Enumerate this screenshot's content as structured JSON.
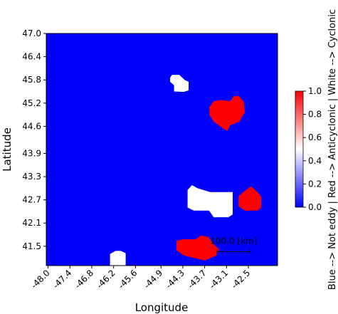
{
  "chart_data": {
    "type": "heatmap",
    "title": "",
    "xlabel": "Longitude",
    "ylabel": "Latitude",
    "xlim": [
      -48.05,
      -41.7
    ],
    "ylim": [
      41.0,
      47.0
    ],
    "x_ticks": [
      "-48.0",
      "-47.4",
      "-46.8",
      "-46.2",
      "-45.6",
      "-44.9",
      "-44.3",
      "-43.7",
      "-43.1",
      "-42.5"
    ],
    "x_tick_values": [
      -48.0,
      -47.4,
      -46.8,
      -46.2,
      -45.6,
      -44.9,
      -44.3,
      -43.7,
      -43.1,
      -42.5
    ],
    "y_ticks": [
      "47.0",
      "46.4",
      "45.8",
      "45.2",
      "44.6",
      "43.9",
      "43.3",
      "42.7",
      "42.1",
      "41.5"
    ],
    "y_tick_values": [
      47.0,
      46.4,
      45.8,
      45.2,
      44.6,
      43.9,
      43.3,
      42.7,
      42.1,
      41.5
    ],
    "background_value": 0.0,
    "colormap": {
      "0.0": "#0000ff",
      "0.5": "#ffffff",
      "1.0": "#ff0000"
    },
    "colorbar": {
      "label": "Blue --> Not eddy | Red --> Anticyclonic | White --> Cyclonic",
      "ticks": [
        "0.0",
        "0.2",
        "0.4",
        "0.6",
        "0.8",
        "1.0"
      ],
      "tick_values": [
        0.0,
        0.2,
        0.4,
        0.6,
        0.8,
        1.0
      ],
      "range": [
        0.0,
        1.0
      ]
    },
    "eddies": [
      {
        "kind": "cyclonic",
        "value": 0.5,
        "outline": [
          [
            -44.6,
            45.93
          ],
          [
            -44.4,
            45.93
          ],
          [
            -44.25,
            45.8
          ],
          [
            -44.14,
            45.75
          ],
          [
            -44.14,
            45.53
          ],
          [
            -44.27,
            45.49
          ],
          [
            -44.54,
            45.5
          ],
          [
            -44.54,
            45.66
          ],
          [
            -44.65,
            45.75
          ],
          [
            -44.65,
            45.85
          ]
        ]
      },
      {
        "kind": "anticyclonic",
        "value": 1.0,
        "outline": [
          [
            -43.57,
            45.1
          ],
          [
            -43.45,
            45.25
          ],
          [
            -43.25,
            45.28
          ],
          [
            -43.0,
            45.25
          ],
          [
            -42.9,
            45.38
          ],
          [
            -42.75,
            45.38
          ],
          [
            -42.62,
            45.22
          ],
          [
            -42.6,
            44.96
          ],
          [
            -42.75,
            44.72
          ],
          [
            -43.0,
            44.62
          ],
          [
            -43.08,
            44.48
          ],
          [
            -43.2,
            44.55
          ],
          [
            -43.45,
            44.72
          ],
          [
            -43.57,
            44.9
          ]
        ]
      },
      {
        "kind": "cyclonic",
        "value": 0.5,
        "outline": [
          [
            -44.17,
            42.95
          ],
          [
            -44.05,
            43.08
          ],
          [
            -43.9,
            43.0
          ],
          [
            -43.55,
            42.9
          ],
          [
            -43.32,
            42.9
          ],
          [
            -42.93,
            42.9
          ],
          [
            -42.93,
            42.32
          ],
          [
            -43.05,
            42.25
          ],
          [
            -43.45,
            42.25
          ],
          [
            -43.58,
            42.42
          ],
          [
            -44.0,
            42.42
          ],
          [
            -44.17,
            42.5
          ]
        ]
      },
      {
        "kind": "anticyclonic",
        "value": 1.0,
        "outline": [
          [
            -42.57,
            42.95
          ],
          [
            -42.43,
            43.05
          ],
          [
            -42.25,
            42.9
          ],
          [
            -42.15,
            42.78
          ],
          [
            -42.15,
            42.5
          ],
          [
            -42.25,
            42.42
          ],
          [
            -42.6,
            42.42
          ],
          [
            -42.77,
            42.53
          ],
          [
            -42.77,
            42.8
          ]
        ]
      },
      {
        "kind": "cyclonic",
        "value": 0.5,
        "outline": [
          [
            -46.15,
            41.38
          ],
          [
            -46.0,
            41.38
          ],
          [
            -45.87,
            41.32
          ],
          [
            -45.87,
            41.0
          ],
          [
            -46.3,
            41.0
          ],
          [
            -46.3,
            41.3
          ]
        ]
      },
      {
        "kind": "anticyclonic",
        "value": 1.0,
        "outline": [
          [
            -44.47,
            41.64
          ],
          [
            -44.32,
            41.68
          ],
          [
            -43.95,
            41.68
          ],
          [
            -43.8,
            41.78
          ],
          [
            -43.6,
            41.74
          ],
          [
            -43.45,
            41.55
          ],
          [
            -43.3,
            41.42
          ],
          [
            -43.38,
            41.26
          ],
          [
            -43.7,
            41.13
          ],
          [
            -44.0,
            41.2
          ],
          [
            -44.27,
            41.26
          ],
          [
            -44.48,
            41.4
          ]
        ]
      }
    ],
    "annotations": [
      {
        "text": "100.0 [km]",
        "type": "scale-bar",
        "x_start": -43.36,
        "x_end": -42.45,
        "y": 41.36
      }
    ]
  }
}
